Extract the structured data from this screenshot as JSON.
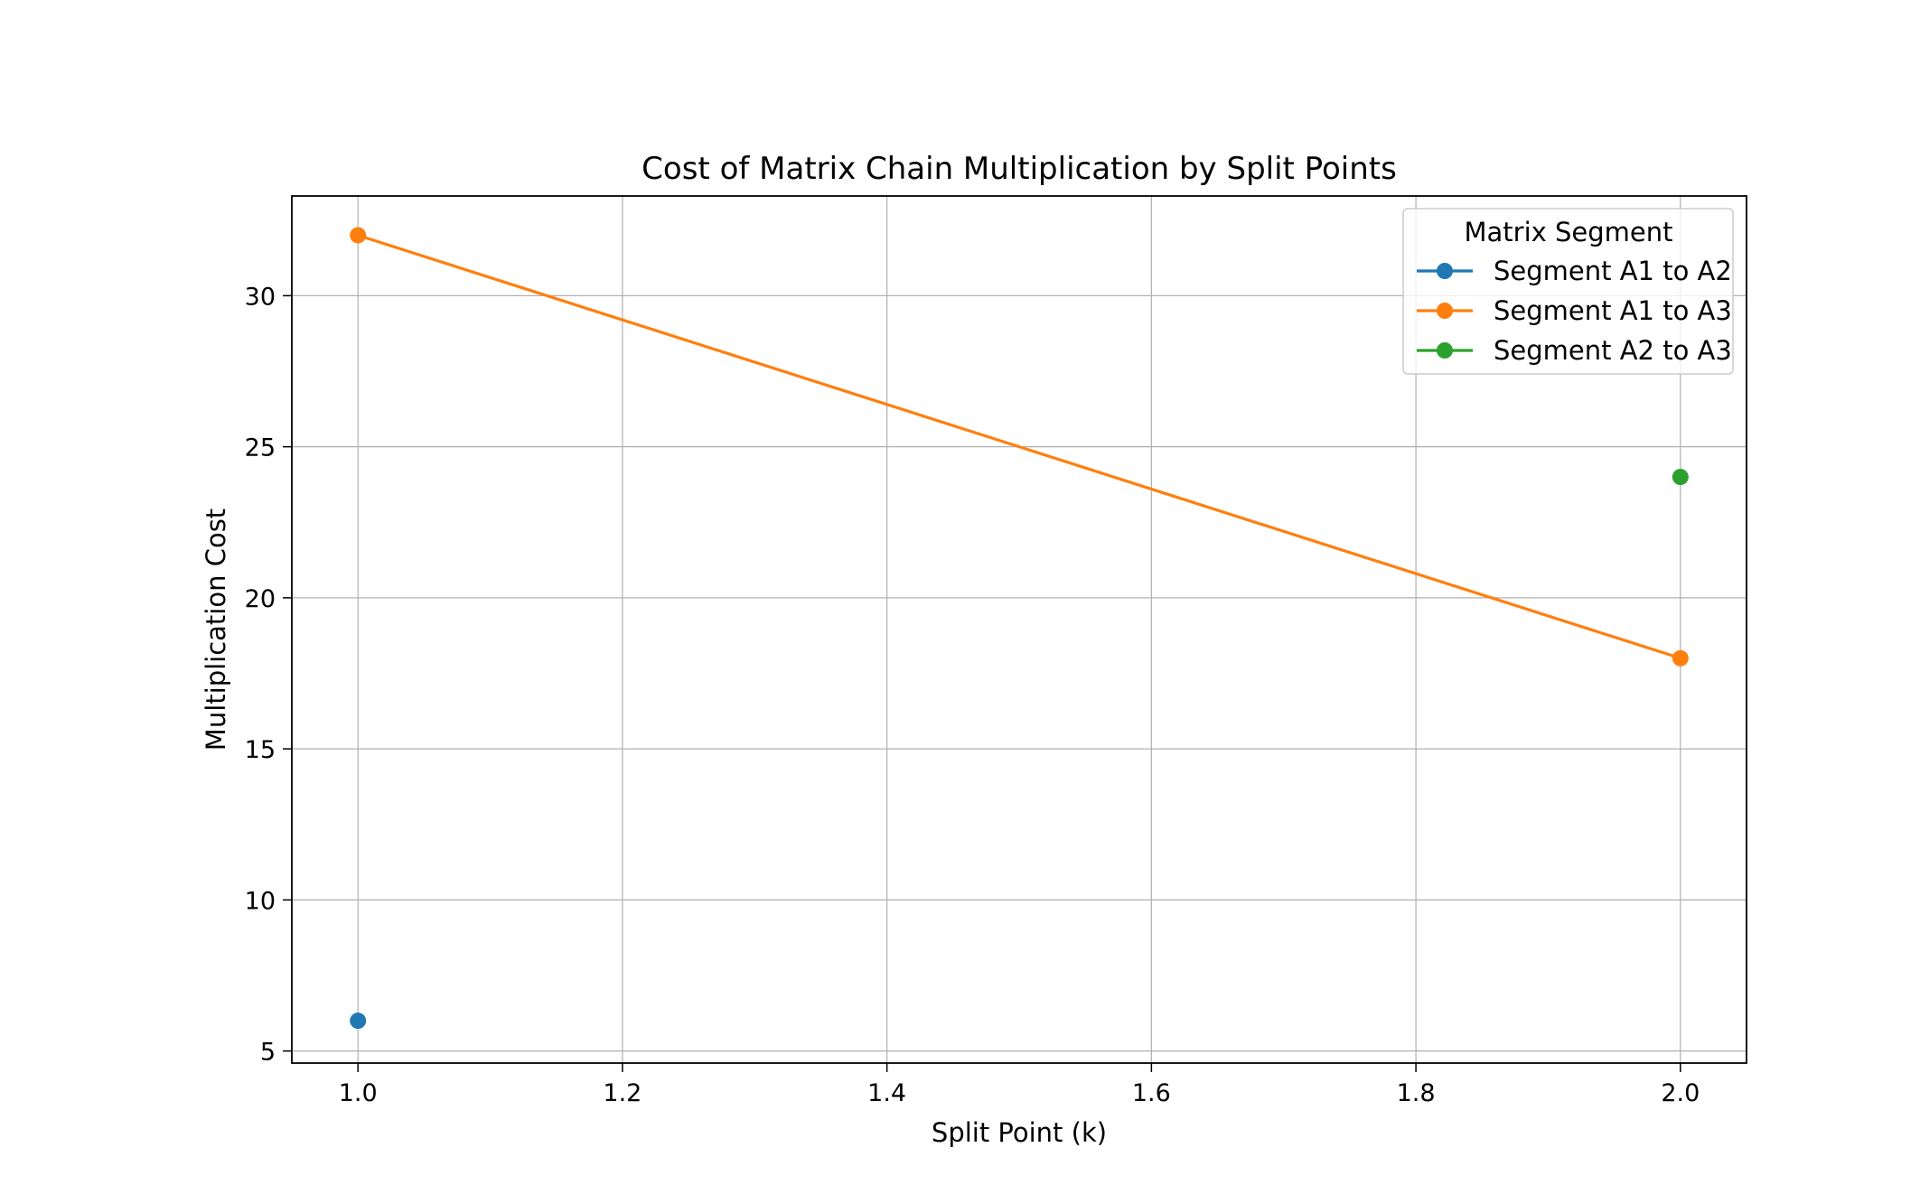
{
  "chart_data": {
    "type": "line",
    "title": "Cost of Matrix Chain Multiplication by Split Points",
    "xlabel": "Split Point (k)",
    "ylabel": "Multiplication Cost",
    "xlim": [
      0.95,
      2.05
    ],
    "ylim": [
      4.6,
      33.3
    ],
    "xticks": [
      "1.0",
      "1.2",
      "1.4",
      "1.6",
      "1.8",
      "2.0"
    ],
    "yticks": [
      "5",
      "10",
      "15",
      "20",
      "25",
      "30"
    ],
    "grid": true,
    "legend": {
      "title": "Matrix Segment",
      "placement": "top-right"
    },
    "series": [
      {
        "name": "Segment A1 to A2",
        "color": "#1f77b4",
        "x": [
          1.0
        ],
        "y": [
          6
        ]
      },
      {
        "name": "Segment A1 to A3",
        "color": "#ff7f0e",
        "x": [
          1.0,
          2.0
        ],
        "y": [
          32,
          18
        ]
      },
      {
        "name": "Segment A2 to A3",
        "color": "#2ca02c",
        "x": [
          2.0
        ],
        "y": [
          24
        ]
      }
    ]
  }
}
